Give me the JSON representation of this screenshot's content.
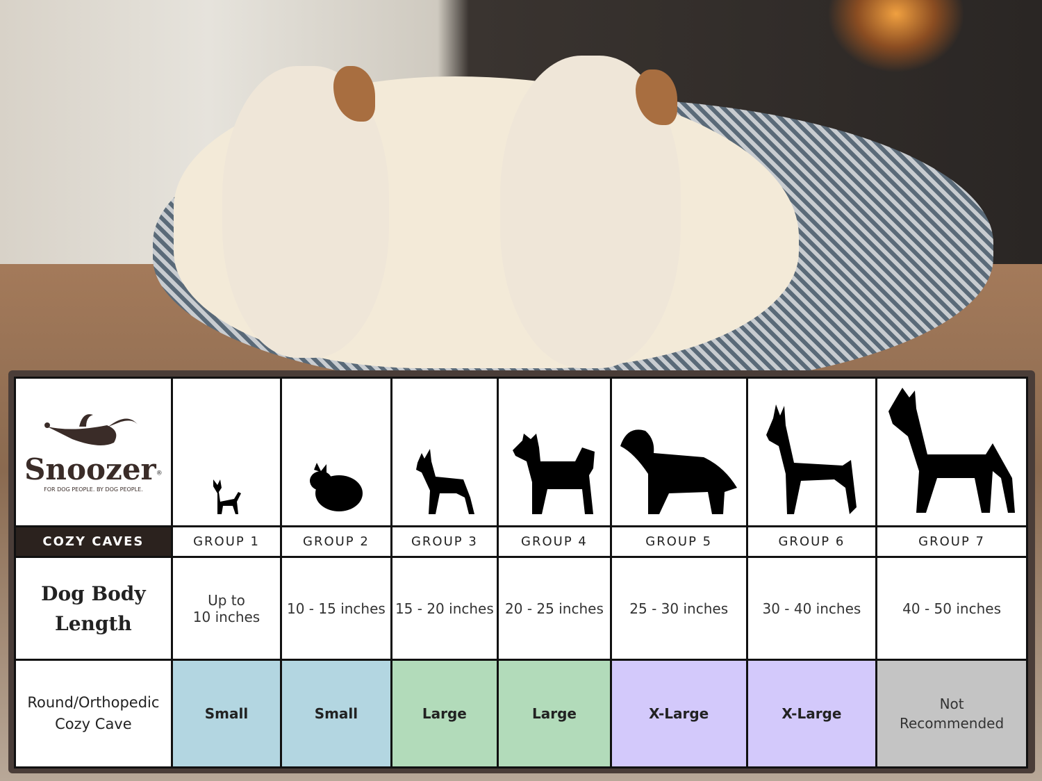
{
  "brand": {
    "name": "Snoozer",
    "registered": "®",
    "tagline": "FOR DOG PEOPLE. BY DOG PEOPLE.",
    "product_line": "COZY CAVES"
  },
  "colors": {
    "small": "#b3d6e1",
    "large": "#b2dbba",
    "xlarge": "#d3c9fb",
    "not_recommended": "#c4c4c4",
    "header_dark": "#2b221e"
  },
  "row_labels": {
    "length_line1": "Dog Body",
    "length_line2": "Length",
    "product_line1": "Round/Orthopedic",
    "product_line2": "Cozy Cave"
  },
  "groups": [
    {
      "name": "GROUP 1",
      "icon": "chihuahua-silhouette-icon",
      "length_line1": "Up to",
      "length_line2": "10 inches",
      "size": "Small",
      "size_color": "small"
    },
    {
      "name": "GROUP 2",
      "icon": "pomeranian-silhouette-icon",
      "length_line1": "10 - 15 inches",
      "length_line2": "",
      "size": "Small",
      "size_color": "small"
    },
    {
      "name": "GROUP 3",
      "icon": "boston-terrier-silhouette-icon",
      "length_line1": "15 - 20 inches",
      "length_line2": "",
      "size": "Large",
      "size_color": "large"
    },
    {
      "name": "GROUP 4",
      "icon": "husky-silhouette-icon",
      "length_line1": "20 - 25 inches",
      "length_line2": "",
      "size": "Large",
      "size_color": "large"
    },
    {
      "name": "GROUP 5",
      "icon": "golden-retriever-silhouette-icon",
      "length_line1": "25 - 30 inches",
      "length_line2": "",
      "size": "X-Large",
      "size_color": "xlarge"
    },
    {
      "name": "GROUP 6",
      "icon": "doberman-silhouette-icon",
      "length_line1": "30 - 40 inches",
      "length_line2": "",
      "size": "X-Large",
      "size_color": "xlarge"
    },
    {
      "name": "GROUP 7",
      "icon": "great-dane-silhouette-icon",
      "length_line1": "40 - 50 inches",
      "length_line2": "",
      "size_line1": "Not",
      "size_line2": "Recommended",
      "size_color": "not_recommended"
    }
  ]
}
